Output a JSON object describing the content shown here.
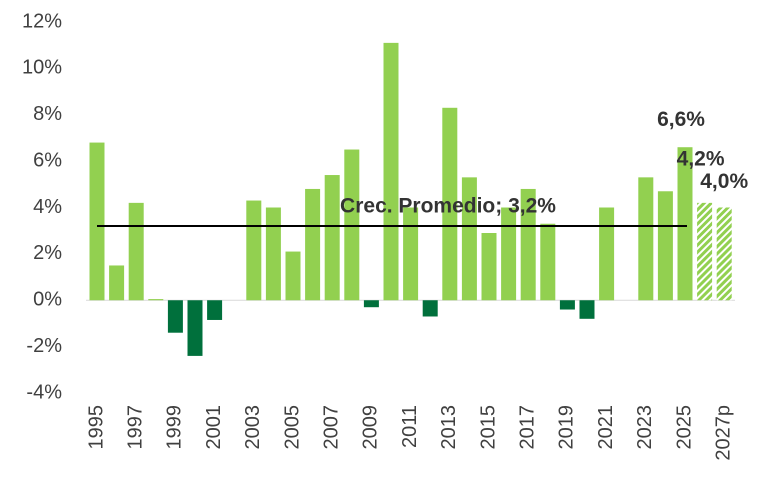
{
  "chart_data": {
    "type": "bar",
    "categories": [
      "1995",
      null,
      "1997",
      null,
      "1999",
      null,
      "2001",
      null,
      "2003",
      null,
      "2005",
      null,
      "2007",
      null,
      "2009",
      null,
      "2011",
      null,
      "2013",
      null,
      "2015",
      null,
      "2017",
      null,
      "2019",
      null,
      "2021",
      null,
      "2023",
      null,
      "2025",
      null,
      "2027p"
    ],
    "values": [
      6.8,
      1.5,
      4.2,
      0.05,
      -1.4,
      -2.4,
      -0.85,
      0,
      4.3,
      4.0,
      2.1,
      4.8,
      5.4,
      6.5,
      -0.3,
      11.1,
      4.0,
      -0.7,
      8.3,
      5.3,
      2.9,
      4.0,
      4.8,
      3.3,
      -0.4,
      -0.8,
      4.0,
      0,
      5.3,
      4.7,
      6.6,
      4.2,
      4.0
    ],
    "value_labels": [
      null,
      null,
      null,
      null,
      null,
      null,
      null,
      null,
      null,
      null,
      null,
      null,
      null,
      null,
      null,
      null,
      null,
      null,
      null,
      null,
      null,
      null,
      null,
      null,
      null,
      null,
      null,
      null,
      null,
      null,
      "6,6%",
      "4,2%",
      "4,0%"
    ],
    "color": "#92d050",
    "negative_color": "#00703c",
    "hatched_last": 2,
    "average": {
      "label": "Crec. Promedio; 3,2%",
      "value": 3.2
    },
    "ylim": [
      -4,
      12
    ],
    "yticks": [
      {
        "value": -4,
        "label": "-4%"
      },
      {
        "value": -2,
        "label": "-2%"
      },
      {
        "value": 0,
        "label": "0%"
      },
      {
        "value": 2,
        "label": "2%"
      },
      {
        "value": 4,
        "label": "4%"
      },
      {
        "value": 6,
        "label": "6%"
      },
      {
        "value": 8,
        "label": "8%"
      },
      {
        "value": 10,
        "label": "10%"
      },
      {
        "value": 12,
        "label": "12%"
      }
    ],
    "grid": false
  }
}
